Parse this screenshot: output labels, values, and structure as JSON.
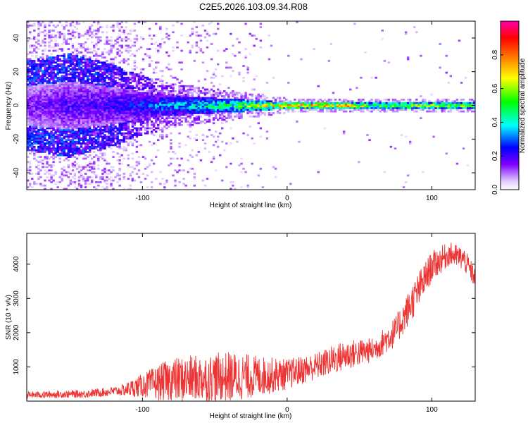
{
  "title": "C2E5.2026.103.09.34.R08",
  "chart_data": [
    {
      "type": "heatmap",
      "name": "spectrogram",
      "title": "C2E5.2026.103.09.34.R08",
      "xlabel": "Height of straight line (km)",
      "ylabel": "Frequency (Hz)",
      "xlim": [
        -180,
        130
      ],
      "ylim": [
        -50,
        50
      ],
      "xticks": [
        -100,
        0,
        100
      ],
      "yticks": [
        -40,
        -20,
        0,
        20,
        40
      ],
      "colorbar": {
        "label": "Normalized spectral amplitude",
        "range": [
          0,
          1
        ],
        "ticks": [
          "0.0",
          "0.2",
          "0.4",
          "0.6",
          "0.8"
        ],
        "colors": [
          "#ffffff",
          "#e6ccff",
          "#8000ff",
          "#0000ff",
          "#00ffff",
          "#00ff00",
          "#ffff00",
          "#ff8000",
          "#ff0000",
          "#ff00aa"
        ]
      },
      "band_center_hz": 0,
      "band_profile": [
        {
          "x": -180,
          "halfwidth_hz": 12,
          "amplitude": 0.18,
          "scatter": 0.95
        },
        {
          "x": -150,
          "halfwidth_hz": 14,
          "amplitude": 0.22,
          "scatter": 0.9
        },
        {
          "x": -120,
          "halfwidth_hz": 11,
          "amplitude": 0.25,
          "scatter": 0.75
        },
        {
          "x": -100,
          "halfwidth_hz": 8,
          "amplitude": 0.3,
          "scatter": 0.45
        },
        {
          "x": -80,
          "halfwidth_hz": 6,
          "amplitude": 0.4,
          "scatter": 0.25
        },
        {
          "x": -60,
          "halfwidth_hz": 5,
          "amplitude": 0.45,
          "scatter": 0.2
        },
        {
          "x": -40,
          "halfwidth_hz": 4,
          "amplitude": 0.55,
          "scatter": 0.12
        },
        {
          "x": -20,
          "halfwidth_hz": 3,
          "amplitude": 0.7,
          "scatter": 0.08
        },
        {
          "x": 0,
          "halfwidth_hz": 2,
          "amplitude": 0.85,
          "scatter": 0.03
        },
        {
          "x": 40,
          "halfwidth_hz": 2,
          "amplitude": 0.88,
          "scatter": 0.02
        },
        {
          "x": 60,
          "halfwidth_hz": 2,
          "amplitude": 0.6,
          "scatter": 0.02
        },
        {
          "x": 100,
          "halfwidth_hz": 2,
          "amplitude": 0.75,
          "scatter": 0.02
        },
        {
          "x": 130,
          "halfwidth_hz": 2,
          "amplitude": 0.6,
          "scatter": 0.02
        }
      ]
    },
    {
      "type": "line",
      "name": "snr",
      "xlabel": "Height of straight line (km)",
      "ylabel": "SNR (10 * v/v)",
      "xlim": [
        -180,
        130
      ],
      "ylim": [
        0,
        4900
      ],
      "xticks": [
        -100,
        0,
        100
      ],
      "yticks": [
        1000,
        2000,
        3000,
        4000
      ],
      "color": "#ee3333",
      "trend": [
        {
          "x": -180,
          "mean": 150,
          "spread": 200
        },
        {
          "x": -140,
          "mean": 180,
          "spread": 220
        },
        {
          "x": -115,
          "mean": 260,
          "spread": 300
        },
        {
          "x": -100,
          "mean": 350,
          "spread": 700
        },
        {
          "x": -80,
          "mean": 420,
          "spread": 1300
        },
        {
          "x": -60,
          "mean": 450,
          "spread": 1400
        },
        {
          "x": -40,
          "mean": 480,
          "spread": 1500
        },
        {
          "x": -20,
          "mean": 550,
          "spread": 1200
        },
        {
          "x": 0,
          "mean": 650,
          "spread": 900
        },
        {
          "x": 20,
          "mean": 900,
          "spread": 800
        },
        {
          "x": 40,
          "mean": 1200,
          "spread": 900
        },
        {
          "x": 60,
          "mean": 1400,
          "spread": 700
        },
        {
          "x": 75,
          "mean": 1900,
          "spread": 900
        },
        {
          "x": 90,
          "mean": 3000,
          "spread": 1100
        },
        {
          "x": 100,
          "mean": 3800,
          "spread": 900
        },
        {
          "x": 112,
          "mean": 4200,
          "spread": 700
        },
        {
          "x": 122,
          "mean": 4050,
          "spread": 700
        },
        {
          "x": 130,
          "mean": 3500,
          "spread": 600
        }
      ]
    }
  ]
}
